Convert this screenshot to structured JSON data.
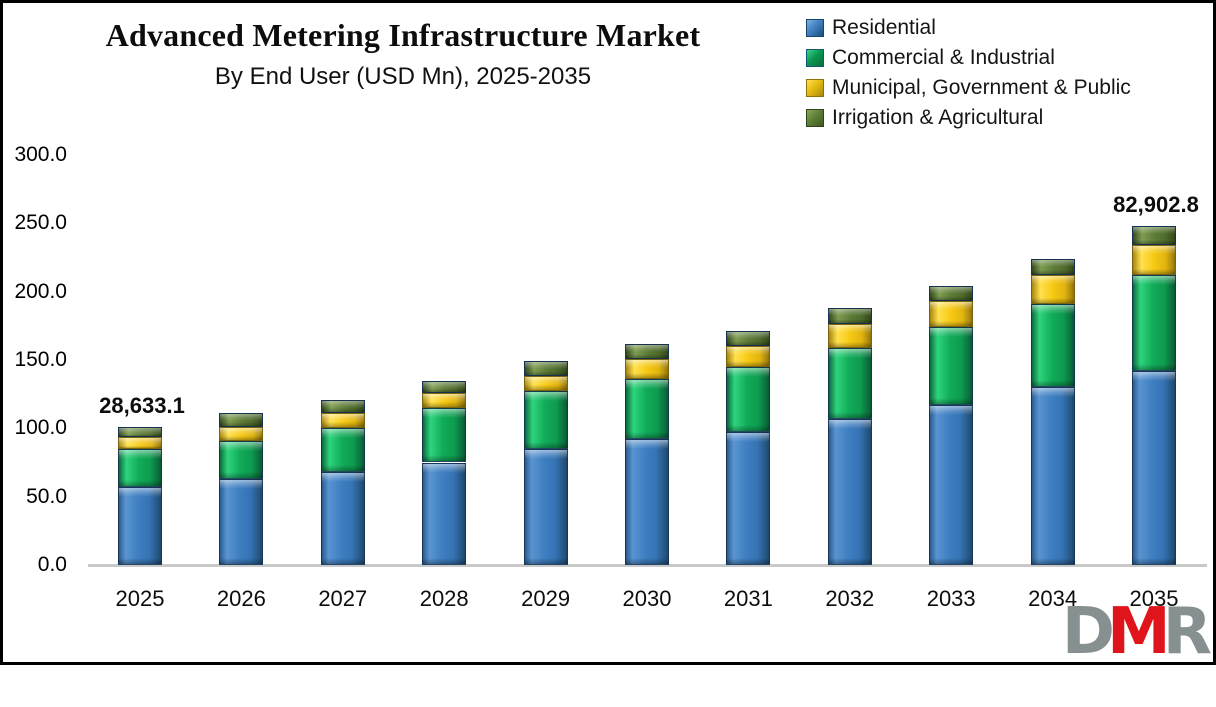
{
  "title": "Advanced Metering Infrastructure Market",
  "subtitle": "By End User (USD Mn), 2025-2035",
  "legend": [
    {
      "label": "Residential",
      "color": "#3B7CC4"
    },
    {
      "label": "Commercial & Industrial",
      "color": "#12AC5C"
    },
    {
      "label": "Municipal, Government & Public",
      "color": "#F4C718"
    },
    {
      "label": "Irrigation & Agricultural",
      "color": "#5B7A38"
    }
  ],
  "chart_data": {
    "type": "bar",
    "stacked": true,
    "title": "Advanced Metering Infrastructure Market",
    "subtitle": "By End User (USD Mn), 2025-2035",
    "categories": [
      "2025",
      "2026",
      "2027",
      "2028",
      "2029",
      "2030",
      "2031",
      "2032",
      "2033",
      "2034",
      "2035"
    ],
    "series": [
      {
        "name": "Residential",
        "color": "#3B7CC4",
        "values": [
          57,
          63,
          68,
          75,
          85,
          92,
          97,
          107,
          117,
          130,
          142
        ]
      },
      {
        "name": "Commercial & Industrial",
        "color": "#12AC5C",
        "values": [
          28,
          28,
          32,
          40,
          42,
          44,
          48,
          52,
          57,
          61,
          70
        ]
      },
      {
        "name": "Municipal, Government & Public",
        "color": "#F4C718",
        "values": [
          9,
          10,
          11,
          11,
          11,
          15,
          15,
          17,
          19,
          21,
          22
        ]
      },
      {
        "name": "Irrigation & Agricultural",
        "color": "#5B7A38",
        "values": [
          7,
          10,
          10,
          9,
          11,
          11,
          11,
          12,
          11,
          12,
          14
        ]
      }
    ],
    "totals": [
      101,
      111,
      121,
      135,
      149,
      162,
      171,
      188,
      204,
      224,
      248
    ],
    "xlabel": "",
    "ylabel": "",
    "ylim": [
      0,
      300
    ],
    "ytick_step": 50,
    "yticks": [
      "300.0",
      "250.0",
      "200.0",
      "150.0",
      "100.0",
      "50.0",
      "0.0"
    ],
    "grid": false,
    "legend_position": "top-right",
    "annotations": [
      {
        "category": "2025",
        "text": "28,633.1"
      },
      {
        "category": "2035",
        "text": "82,902.8"
      }
    ]
  },
  "watermark": {
    "text": "DMR",
    "letter_colors": [
      "#879090",
      "#E0151B",
      "#879090"
    ]
  }
}
